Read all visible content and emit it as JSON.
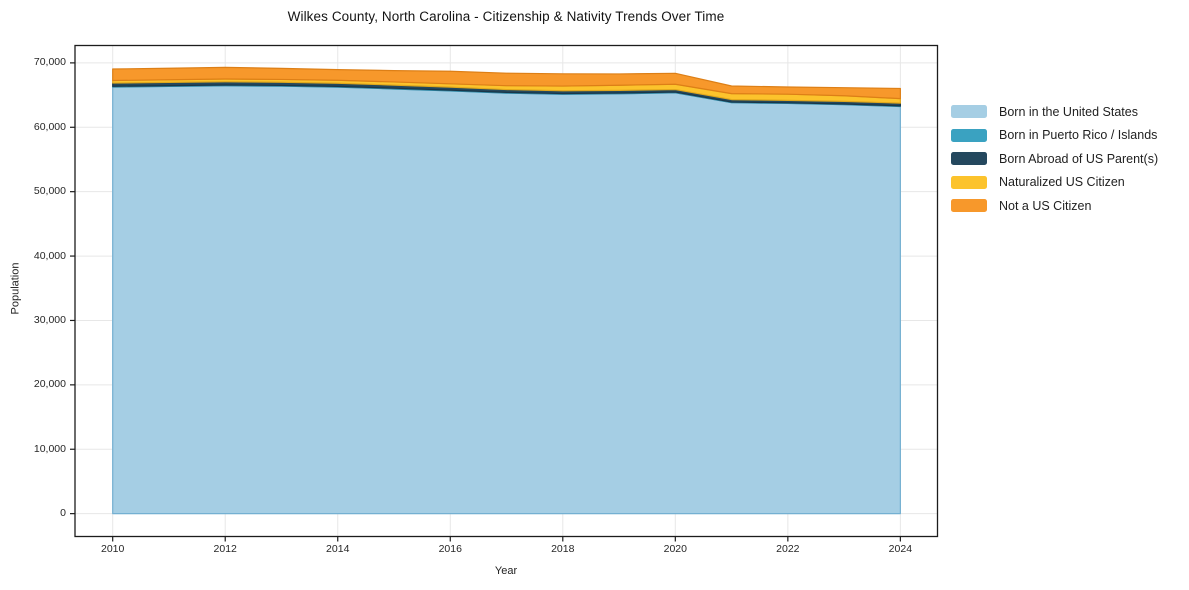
{
  "figure": {
    "background": "#ffffff"
  },
  "chart_data": {
    "type": "area",
    "stacked": true,
    "title": "Wilkes County, North Carolina - Citizenship & Nativity Trends Over Time",
    "xlabel": "Year",
    "ylabel": "Population",
    "x": [
      2010,
      2011,
      2012,
      2013,
      2014,
      2015,
      2016,
      2017,
      2018,
      2019,
      2020,
      2021,
      2022,
      2023,
      2024
    ],
    "series": [
      {
        "name": "Born in the United States",
        "color": "#a5cee4",
        "edge": "#74b0d2",
        "values": [
          66250,
          66350,
          66450,
          66380,
          66230,
          65950,
          65650,
          65300,
          65120,
          65200,
          65350,
          63820,
          63700,
          63520,
          63230
        ]
      },
      {
        "name": "Born in Puerto Rico / Islands",
        "color": "#3aa2c1",
        "edge": "#2d87a4",
        "values": [
          120,
          120,
          120,
          120,
          120,
          120,
          120,
          120,
          120,
          120,
          120,
          100,
          100,
          100,
          100
        ]
      },
      {
        "name": "Born Abroad of US Parent(s)",
        "color": "#24485e",
        "edge": "#1a3648",
        "values": [
          500,
          500,
          500,
          490,
          490,
          480,
          460,
          440,
          430,
          410,
          390,
          380,
          380,
          400,
          420
        ]
      },
      {
        "name": "Naturalized US Citizen",
        "color": "#fcc32c",
        "edge": "#e0a71c",
        "values": [
          400,
          410,
          430,
          440,
          460,
          490,
          520,
          600,
          730,
          800,
          820,
          930,
          960,
          880,
          700
        ]
      },
      {
        "name": "Not a US Citizen",
        "color": "#f7982b",
        "edge": "#dd7f16",
        "values": [
          1780,
          1790,
          1800,
          1720,
          1650,
          1760,
          1950,
          1940,
          1900,
          1750,
          1700,
          1180,
          1120,
          1250,
          1580
        ]
      }
    ],
    "xlim": [
      2009.33,
      2024.66
    ],
    "ylim": [
      -3550,
      72700
    ],
    "xticks": [
      2010,
      2012,
      2014,
      2016,
      2018,
      2020,
      2022,
      2024
    ],
    "xtick_labels": [
      "2010",
      "2012",
      "2014",
      "2016",
      "2018",
      "2020",
      "2022",
      "2024"
    ],
    "yticks": [
      0,
      10000,
      20000,
      30000,
      40000,
      50000,
      60000,
      70000
    ],
    "ytick_labels": [
      "0",
      "10,000",
      "20,000",
      "30,000",
      "40,000",
      "50,000",
      "60,000",
      "70,000"
    ],
    "grid": true,
    "grid_color": "#e7e7e7",
    "spine_color": "#1c1c1c",
    "tick_text_color": "#262626",
    "legend_position": "right"
  }
}
